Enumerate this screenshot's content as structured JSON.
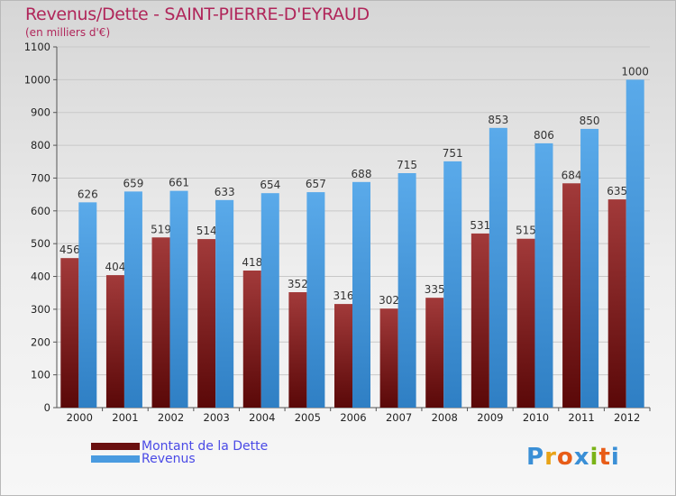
{
  "chart_data": {
    "type": "bar",
    "title": "Revenus/Dette - SAINT-PIERRE-D'EYRAUD",
    "subtitle": "(en milliers d'€)",
    "categories": [
      "2000",
      "2001",
      "2002",
      "2003",
      "2004",
      "2005",
      "2006",
      "2007",
      "2008",
      "2009",
      "2010",
      "2011",
      "2012"
    ],
    "series": [
      {
        "name": "Montant de la Dette",
        "color": "#7a1818",
        "values": [
          456,
          404,
          519,
          514,
          418,
          352,
          316,
          302,
          335,
          531,
          515,
          684,
          635
        ]
      },
      {
        "name": "Revenus",
        "color": "#4a9be0",
        "values": [
          626,
          659,
          661,
          633,
          654,
          657,
          688,
          715,
          751,
          853,
          806,
          850,
          1000
        ]
      }
    ],
    "ylim": [
      0,
      1100
    ],
    "yticks": [
      0,
      100,
      200,
      300,
      400,
      500,
      600,
      700,
      800,
      900,
      1000,
      1100
    ],
    "grid": true,
    "legend_position": "bottom-left"
  },
  "logo": {
    "text": "Proxiti",
    "letters": [
      "P",
      "r",
      "o",
      "x",
      "i",
      "t",
      "i"
    ],
    "colors": [
      "#3a8fd6",
      "#e8a317",
      "#e85c17",
      "#3a8fd6",
      "#7ab317",
      "#e85c17",
      "#3a8fd6"
    ]
  }
}
